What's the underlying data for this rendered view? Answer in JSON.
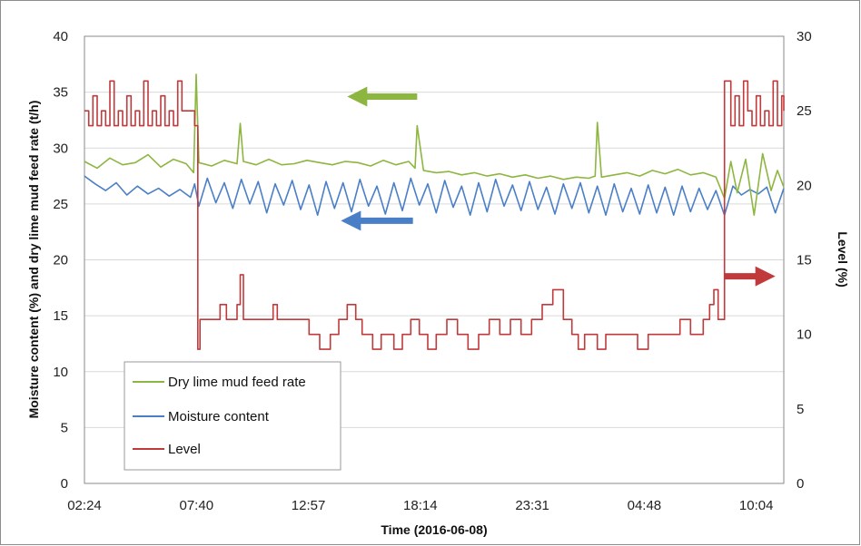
{
  "chart_data": {
    "type": "line",
    "title": "",
    "xlabel": "Time (2016-06-08)",
    "ylabel_left": "Moisture content (%) and dry lime mud feed rate (t/h)",
    "ylabel_right": "Level (%)",
    "x_ticks": [
      "02:24",
      "07:40",
      "12:57",
      "18:14",
      "23:31",
      "04:48",
      "10:04"
    ],
    "x_range_hours": [
      2.4,
      35.4
    ],
    "ylim_left": [
      0,
      40
    ],
    "yticks_left": [
      "0",
      "5",
      "10",
      "15",
      "20",
      "25",
      "30",
      "35",
      "40"
    ],
    "ylim_right": [
      0,
      30
    ],
    "yticks_right": [
      "0",
      "5",
      "10",
      "15",
      "20",
      "25",
      "30"
    ],
    "grid": "horizontal",
    "legend_placement": "bottom-left",
    "series": [
      {
        "name": "Dry lime mud feed rate",
        "axis": "left",
        "color": "#8db640",
        "x": [
          2.4,
          3.0,
          3.6,
          4.2,
          4.8,
          5.4,
          6.0,
          6.6,
          7.2,
          7.55,
          7.67,
          7.8,
          8.4,
          9.0,
          9.6,
          9.75,
          9.9,
          10.5,
          11.1,
          11.7,
          12.3,
          12.9,
          13.5,
          14.1,
          14.7,
          15.3,
          15.9,
          16.5,
          17.1,
          17.7,
          18.0,
          18.1,
          18.4,
          19.0,
          19.6,
          20.2,
          20.8,
          21.4,
          22.0,
          22.6,
          23.2,
          23.8,
          24.4,
          25.0,
          25.6,
          26.2,
          26.5,
          26.6,
          26.8,
          27.4,
          28.0,
          28.6,
          29.2,
          29.8,
          30.4,
          31.0,
          31.6,
          32.2,
          32.6,
          32.9,
          33.2,
          33.6,
          34.0,
          34.4,
          34.8,
          35.1,
          35.4
        ],
        "values": [
          28.8,
          28.2,
          29.1,
          28.5,
          28.7,
          29.4,
          28.3,
          29.0,
          28.6,
          27.8,
          36.6,
          28.7,
          28.4,
          28.9,
          28.6,
          32.2,
          28.8,
          28.5,
          29.0,
          28.5,
          28.6,
          28.9,
          28.7,
          28.5,
          28.8,
          28.7,
          28.4,
          28.9,
          28.5,
          28.8,
          28.2,
          32.0,
          28.0,
          27.8,
          27.9,
          27.6,
          27.8,
          27.5,
          27.7,
          27.4,
          27.6,
          27.3,
          27.5,
          27.2,
          27.4,
          27.3,
          27.5,
          32.3,
          27.4,
          27.6,
          27.8,
          27.5,
          28.0,
          27.7,
          28.1,
          27.6,
          27.8,
          27.4,
          25.5,
          28.8,
          26.0,
          29.0,
          24.0,
          29.5,
          26.2,
          28.0,
          26.5
        ]
      },
      {
        "name": "Moisture content",
        "axis": "left",
        "color": "#4a7fc8",
        "x": [
          2.4,
          2.9,
          3.4,
          3.9,
          4.4,
          4.9,
          5.4,
          5.9,
          6.4,
          6.9,
          7.4,
          7.6,
          7.8,
          8.2,
          8.6,
          9.0,
          9.4,
          9.8,
          10.2,
          10.6,
          11.0,
          11.4,
          11.8,
          12.2,
          12.6,
          13.0,
          13.4,
          13.8,
          14.2,
          14.6,
          15.0,
          15.4,
          15.8,
          16.2,
          16.6,
          17.0,
          17.4,
          17.8,
          18.2,
          18.6,
          19.0,
          19.4,
          19.8,
          20.2,
          20.6,
          21.0,
          21.4,
          21.8,
          22.2,
          22.6,
          23.0,
          23.4,
          23.8,
          24.2,
          24.6,
          25.0,
          25.4,
          25.8,
          26.2,
          26.6,
          27.0,
          27.4,
          27.8,
          28.2,
          28.6,
          29.0,
          29.4,
          29.8,
          30.2,
          30.6,
          31.0,
          31.4,
          31.8,
          32.2,
          32.6,
          33.0,
          33.4,
          33.8,
          34.2,
          34.6,
          35.0,
          35.4
        ],
        "values": [
          27.5,
          26.8,
          26.2,
          26.9,
          25.8,
          26.6,
          25.9,
          26.4,
          25.7,
          26.3,
          25.6,
          26.8,
          24.8,
          27.3,
          25.1,
          26.9,
          24.6,
          27.2,
          25.0,
          27.0,
          24.2,
          26.8,
          24.9,
          27.1,
          24.5,
          26.7,
          24.0,
          27.0,
          24.6,
          26.9,
          24.3,
          27.2,
          24.8,
          26.6,
          24.1,
          26.9,
          24.4,
          27.3,
          24.9,
          26.8,
          24.2,
          27.1,
          24.7,
          26.6,
          24.0,
          26.9,
          24.3,
          27.2,
          24.8,
          26.7,
          24.4,
          27.0,
          24.5,
          26.5,
          24.1,
          26.8,
          24.6,
          26.9,
          24.2,
          26.6,
          24.0,
          26.8,
          24.3,
          26.4,
          24.1,
          26.7,
          24.2,
          26.5,
          24.0,
          26.6,
          24.3,
          26.4,
          24.5,
          26.2,
          24.0,
          26.6,
          25.8,
          26.3,
          25.9,
          26.5,
          24.2,
          26.4
        ]
      },
      {
        "name": "Level",
        "axis": "right",
        "color": "#c0393b",
        "x": [
          2.4,
          2.6,
          2.8,
          3.0,
          3.2,
          3.4,
          3.6,
          3.8,
          4.0,
          4.2,
          4.4,
          4.6,
          4.8,
          5.0,
          5.2,
          5.4,
          5.6,
          5.8,
          6.0,
          6.2,
          6.4,
          6.6,
          6.8,
          7.0,
          7.2,
          7.5,
          7.6,
          7.75,
          7.85,
          8.5,
          8.8,
          9.1,
          9.4,
          9.6,
          9.75,
          9.9,
          10.2,
          11.0,
          11.3,
          11.5,
          11.8,
          12.3,
          13.0,
          13.5,
          14.0,
          14.4,
          14.8,
          15.2,
          15.5,
          16.0,
          16.4,
          16.7,
          17.0,
          17.4,
          17.8,
          18.2,
          18.6,
          19.0,
          19.5,
          20.0,
          20.5,
          21.0,
          21.5,
          22.0,
          22.5,
          23.0,
          23.5,
          24.0,
          24.5,
          25.0,
          25.4,
          25.7,
          26.0,
          26.3,
          26.6,
          27.0,
          27.5,
          28.0,
          28.5,
          29.0,
          29.5,
          30.0,
          30.5,
          31.0,
          31.3,
          31.6,
          31.9,
          32.1,
          32.3,
          32.6,
          32.9,
          33.1,
          33.3,
          33.5,
          33.7,
          33.9,
          34.1,
          34.3,
          34.5,
          34.7,
          34.9,
          35.1,
          35.3,
          35.4
        ],
        "values": [
          25,
          24,
          26,
          24,
          25,
          24,
          27,
          24,
          25,
          24,
          26,
          24,
          25,
          24,
          27,
          24,
          25,
          24,
          26,
          24,
          25,
          24,
          27,
          25,
          25,
          25,
          24,
          9,
          11,
          11,
          12,
          11,
          11,
          12,
          14,
          11,
          11,
          11,
          12,
          11,
          11,
          11,
          10,
          9,
          10,
          11,
          12,
          11,
          10,
          9,
          10,
          10,
          9,
          10,
          11,
          10,
          9,
          10,
          11,
          10,
          9,
          10,
          11,
          10,
          11,
          10,
          11,
          12,
          13,
          11,
          10,
          9,
          10,
          10,
          9,
          10,
          10,
          10,
          9,
          10,
          10,
          10,
          11,
          10,
          10,
          11,
          12,
          13,
          11,
          27,
          24,
          26,
          24,
          27,
          25,
          24,
          26,
          24,
          25,
          24,
          27,
          24,
          26,
          25
        ]
      }
    ],
    "arrows": [
      {
        "series": "Dry lime mud feed rate",
        "direction": "left",
        "color": "#8db640",
        "x_hours": [
          14.8,
          18.1
        ],
        "y_left": 34.6
      },
      {
        "series": "Moisture content",
        "direction": "left",
        "color": "#4a7fc8",
        "x_hours": [
          14.5,
          17.9
        ],
        "y_left": 23.5
      },
      {
        "series": "Level",
        "direction": "right",
        "color": "#c0393b",
        "x_hours": [
          32.6,
          35.0
        ],
        "y_right": 13.9
      }
    ]
  }
}
